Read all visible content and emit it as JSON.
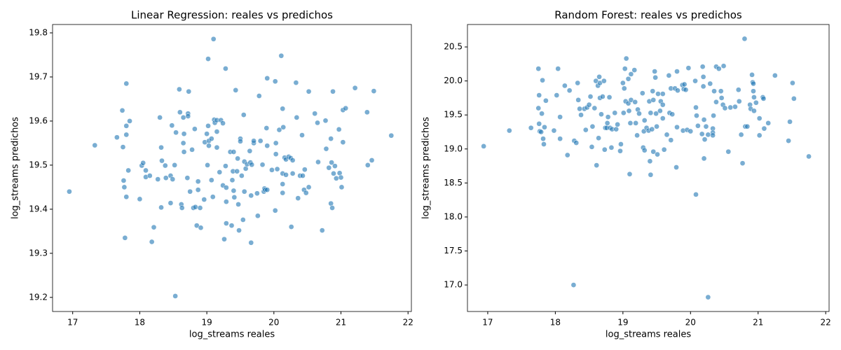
{
  "chart_data": [
    {
      "type": "scatter",
      "title": "Linear Regression: reales vs predichos",
      "xlabel": "log_streams reales",
      "ylabel": "log_streams predichos",
      "color": "#1f77b4",
      "xlim": [
        16.7,
        22.05
      ],
      "ylim": [
        19.168,
        19.819
      ],
      "xticks": [
        17,
        18,
        19,
        20,
        21,
        22
      ],
      "yticks": [
        19.2,
        19.3,
        19.4,
        19.5,
        19.6,
        19.7,
        19.8
      ],
      "x": [
        16.95,
        17.33,
        17.66,
        17.74,
        17.75,
        17.8,
        17.8,
        17.8,
        17.85,
        17.76,
        17.77,
        17.8,
        17.83,
        17.78,
        18.0,
        18.03,
        18.05,
        18.09,
        18.09,
        18.15,
        18.18,
        18.21,
        18.3,
        18.32,
        18.33,
        18.38,
        18.27,
        18.32,
        18.39,
        18.46,
        18.48,
        18.46,
        18.49,
        18.52,
        18.54,
        18.53,
        18.59,
        18.6,
        18.62,
        18.63,
        18.65,
        18.66,
        18.66,
        18.65,
        18.72,
        18.73,
        18.72,
        18.71,
        18.75,
        18.78,
        18.8,
        18.82,
        18.83,
        18.85,
        18.87,
        18.87,
        18.9,
        18.91,
        18.96,
        18.97,
        19.0,
        19.01,
        19.02,
        19.02,
        19.03,
        19.03,
        19.07,
        19.07,
        19.09,
        19.1,
        19.11,
        19.12,
        19.15,
        19.15,
        19.15,
        19.19,
        19.21,
        19.24,
        19.24,
        19.26,
        19.28,
        19.28,
        19.29,
        19.29,
        19.29,
        19.35,
        19.37,
        19.38,
        19.39,
        19.4,
        19.4,
        19.41,
        19.43,
        19.45,
        19.46,
        19.47,
        19.48,
        19.5,
        19.5,
        19.52,
        19.54,
        19.55,
        19.56,
        19.56,
        19.58,
        19.6,
        19.64,
        19.65,
        19.66,
        19.66,
        19.67,
        19.7,
        19.7,
        19.75,
        19.76,
        19.78,
        19.8,
        19.83,
        19.85,
        19.86,
        19.87,
        19.89,
        19.9,
        19.9,
        19.9,
        19.97,
        20.02,
        20.02,
        20.03,
        20.03,
        20.05,
        20.08,
        20.11,
        20.13,
        20.14,
        20.13,
        20.13,
        20.13,
        20.16,
        20.18,
        20.18,
        20.22,
        20.25,
        20.26,
        20.28,
        20.28,
        20.33,
        20.34,
        20.36,
        20.39,
        20.42,
        20.43,
        20.45,
        20.46,
        20.48,
        20.52,
        20.52,
        20.61,
        20.65,
        20.66,
        20.72,
        20.77,
        20.78,
        20.82,
        20.85,
        20.85,
        20.86,
        20.87,
        20.88,
        20.89,
        20.91,
        20.93,
        20.97,
        20.98,
        21.0,
        21.01,
        21.03,
        21.03,
        21.07,
        21.21,
        21.39,
        21.4,
        21.46,
        21.49,
        21.75
      ],
      "y": [
        19.44,
        19.545,
        19.563,
        19.624,
        19.541,
        19.685,
        19.569,
        19.589,
        19.6,
        19.465,
        19.45,
        19.428,
        19.488,
        19.335,
        19.423,
        19.499,
        19.505,
        19.488,
        19.473,
        19.476,
        19.326,
        19.359,
        19.608,
        19.54,
        19.51,
        19.499,
        19.468,
        19.404,
        19.471,
        19.476,
        19.59,
        19.414,
        19.468,
        19.5,
        19.574,
        19.203,
        19.672,
        19.62,
        19.411,
        19.403,
        19.608,
        19.571,
        19.53,
        19.55,
        19.617,
        19.667,
        19.611,
        19.471,
        19.44,
        19.535,
        19.403,
        19.582,
        19.405,
        19.363,
        19.444,
        19.463,
        19.403,
        19.358,
        19.422,
        19.552,
        19.571,
        19.5,
        19.589,
        19.741,
        19.555,
        19.544,
        19.56,
        19.466,
        19.428,
        19.786,
        19.603,
        19.596,
        19.54,
        19.576,
        19.602,
        19.484,
        19.602,
        19.595,
        19.454,
        19.332,
        19.719,
        19.498,
        19.449,
        19.417,
        19.368,
        19.53,
        19.363,
        19.466,
        19.486,
        19.53,
        19.442,
        19.427,
        19.67,
        19.486,
        19.515,
        19.411,
        19.352,
        19.56,
        19.554,
        19.476,
        19.376,
        19.614,
        19.44,
        19.508,
        19.492,
        19.502,
        19.532,
        19.506,
        19.431,
        19.324,
        19.501,
        19.55,
        19.555,
        19.436,
        19.385,
        19.657,
        19.555,
        19.501,
        19.44,
        19.447,
        19.444,
        19.584,
        19.697,
        19.544,
        19.444,
        19.489,
        19.69,
        19.397,
        19.55,
        19.525,
        19.491,
        19.58,
        19.748,
        19.628,
        19.586,
        19.481,
        19.457,
        19.437,
        19.517,
        19.513,
        19.478,
        19.519,
        19.516,
        19.36,
        19.511,
        19.481,
        19.687,
        19.608,
        19.425,
        19.476,
        19.568,
        19.476,
        19.444,
        19.49,
        19.437,
        19.667,
        19.45,
        19.617,
        19.596,
        19.507,
        19.352,
        19.601,
        19.537,
        19.494,
        19.56,
        19.413,
        19.506,
        19.403,
        19.667,
        19.481,
        19.498,
        19.47,
        19.581,
        19.482,
        19.472,
        19.45,
        19.552,
        19.625,
        19.629,
        19.675,
        19.62,
        19.5,
        19.511,
        19.668,
        19.567
      ]
    },
    {
      "type": "scatter",
      "title": "Random Forest: reales vs predichos",
      "xlabel": "log_streams reales",
      "ylabel": "log_streams predichos",
      "color": "#1f77b4",
      "xlim": [
        16.7,
        22.05
      ],
      "ylim": [
        16.61,
        20.83
      ],
      "xticks": [
        17,
        18,
        19,
        20,
        21,
        22
      ],
      "yticks": [
        {
          "value": 17,
          "label": "17.0"
        },
        17.5,
        {
          "value": 18,
          "label": "18.0"
        },
        18.5,
        {
          "value": 19,
          "label": "19.0"
        },
        19.5,
        {
          "value": 20,
          "label": "20.0"
        },
        20.5
      ],
      "x": [
        16.94,
        17.32,
        17.64,
        17.75,
        17.75,
        17.76,
        17.76,
        17.77,
        17.79,
        17.8,
        17.81,
        17.82,
        17.83,
        17.84,
        17.86,
        17.98,
        18.02,
        18.04,
        18.07,
        18.07,
        18.14,
        18.18,
        18.21,
        18.27,
        18.28,
        18.31,
        18.33,
        18.34,
        18.36,
        18.38,
        18.43,
        18.45,
        18.47,
        18.5,
        18.52,
        18.54,
        18.55,
        18.58,
        18.6,
        18.61,
        18.63,
        18.64,
        18.65,
        18.66,
        18.66,
        18.68,
        18.7,
        18.72,
        18.73,
        18.74,
        18.76,
        18.77,
        18.78,
        18.8,
        18.81,
        18.83,
        18.84,
        18.88,
        18.9,
        18.92,
        18.96,
        18.97,
        19.0,
        19.01,
        19.02,
        19.03,
        19.04,
        19.05,
        19.08,
        19.08,
        19.09,
        19.1,
        19.11,
        19.12,
        19.12,
        19.17,
        19.18,
        19.19,
        19.21,
        19.22,
        19.24,
        19.29,
        19.3,
        19.31,
        19.32,
        19.32,
        19.35,
        19.38,
        19.39,
        19.4,
        19.41,
        19.41,
        19.43,
        19.44,
        19.45,
        19.45,
        19.47,
        19.48,
        19.49,
        19.5,
        19.51,
        19.52,
        19.55,
        19.56,
        19.59,
        19.59,
        19.59,
        19.61,
        19.65,
        19.68,
        19.69,
        19.71,
        19.71,
        19.73,
        19.77,
        19.79,
        19.8,
        19.8,
        19.81,
        19.88,
        19.89,
        19.9,
        19.91,
        19.93,
        19.95,
        19.97,
        20.0,
        20.07,
        20.08,
        20.08,
        20.09,
        20.11,
        20.17,
        20.18,
        20.19,
        20.19,
        20.2,
        20.2,
        20.21,
        20.23,
        20.26,
        20.26,
        20.29,
        20.33,
        20.33,
        20.33,
        20.34,
        20.35,
        20.38,
        20.38,
        20.42,
        20.45,
        20.46,
        20.48,
        20.49,
        20.51,
        20.56,
        20.59,
        20.66,
        20.71,
        20.72,
        20.75,
        20.77,
        20.8,
        20.81,
        20.84,
        20.88,
        20.89,
        20.91,
        20.92,
        20.93,
        20.93,
        20.94,
        20.94,
        20.97,
        21.02,
        21.02,
        21.07,
        21.08,
        21.09,
        21.15,
        21.25,
        21.45,
        21.47,
        21.51,
        21.53,
        21.75
      ],
      "y": [
        19.04,
        19.27,
        19.31,
        20.18,
        19.6,
        19.79,
        19.37,
        19.26,
        19.25,
        19.52,
        20.01,
        19.15,
        19.07,
        19.32,
        19.71,
        19.27,
        19.79,
        20.18,
        19.47,
        19.15,
        19.93,
        18.91,
        19.86,
        17.0,
        19.12,
        19.09,
        19.97,
        19.72,
        19.59,
        19.5,
        19.59,
        19.28,
        19.61,
        19.65,
        19.77,
        19.03,
        19.33,
        19.6,
        20.0,
        18.76,
        19.93,
        19.16,
        20.06,
        19.75,
        19.97,
        19.51,
        19.77,
        20.0,
        18.99,
        19.31,
        19.31,
        19.38,
        19.47,
        19.76,
        19.31,
        19.02,
        19.29,
        19.53,
        19.29,
        19.36,
        18.97,
        19.07,
        19.97,
        19.53,
        19.89,
        20.18,
        19.7,
        20.33,
        20.03,
        19.67,
        19.56,
        18.63,
        19.38,
        20.1,
        19.72,
        20.16,
        19.69,
        19.38,
        19.2,
        19.58,
        19.52,
        19.82,
        19.02,
        19.26,
        19.42,
        18.98,
        19.31,
        19.27,
        19.7,
        18.82,
        18.62,
        19.53,
        19.29,
        19.85,
        18.96,
        19.72,
        20.14,
        20.05,
        19.52,
        19.33,
        18.92,
        19.81,
        19.56,
        19.7,
        19.65,
        19.45,
        19.81,
        18.99,
        19.21,
        20.08,
        19.53,
        19.89,
        19.13,
        19.51,
        19.89,
        18.73,
        20.14,
        19.32,
        19.86,
        19.94,
        19.27,
        19.88,
        19.95,
        19.87,
        19.28,
        20.19,
        19.26,
        20.0,
        19.61,
        18.33,
        19.49,
        19.34,
        19.22,
        20.21,
        19.92,
        20.06,
        18.86,
        19.43,
        19.14,
        19.33,
        19.21,
        16.82,
        19.96,
        19.3,
        19.24,
        19.2,
        19.49,
        19.85,
        19.69,
        20.21,
        20.18,
        19.85,
        19.75,
        19.65,
        20.22,
        19.6,
        18.96,
        19.61,
        19.62,
        19.87,
        19.7,
        19.21,
        18.79,
        20.62,
        19.33,
        19.33,
        19.65,
        19.59,
        20.09,
        19.98,
        19.96,
        19.85,
        19.56,
        19.76,
        19.68,
        19.2,
        19.45,
        19.76,
        19.74,
        19.3,
        19.38,
        20.08,
        19.12,
        19.4,
        19.97,
        19.74,
        18.89
      ]
    }
  ]
}
